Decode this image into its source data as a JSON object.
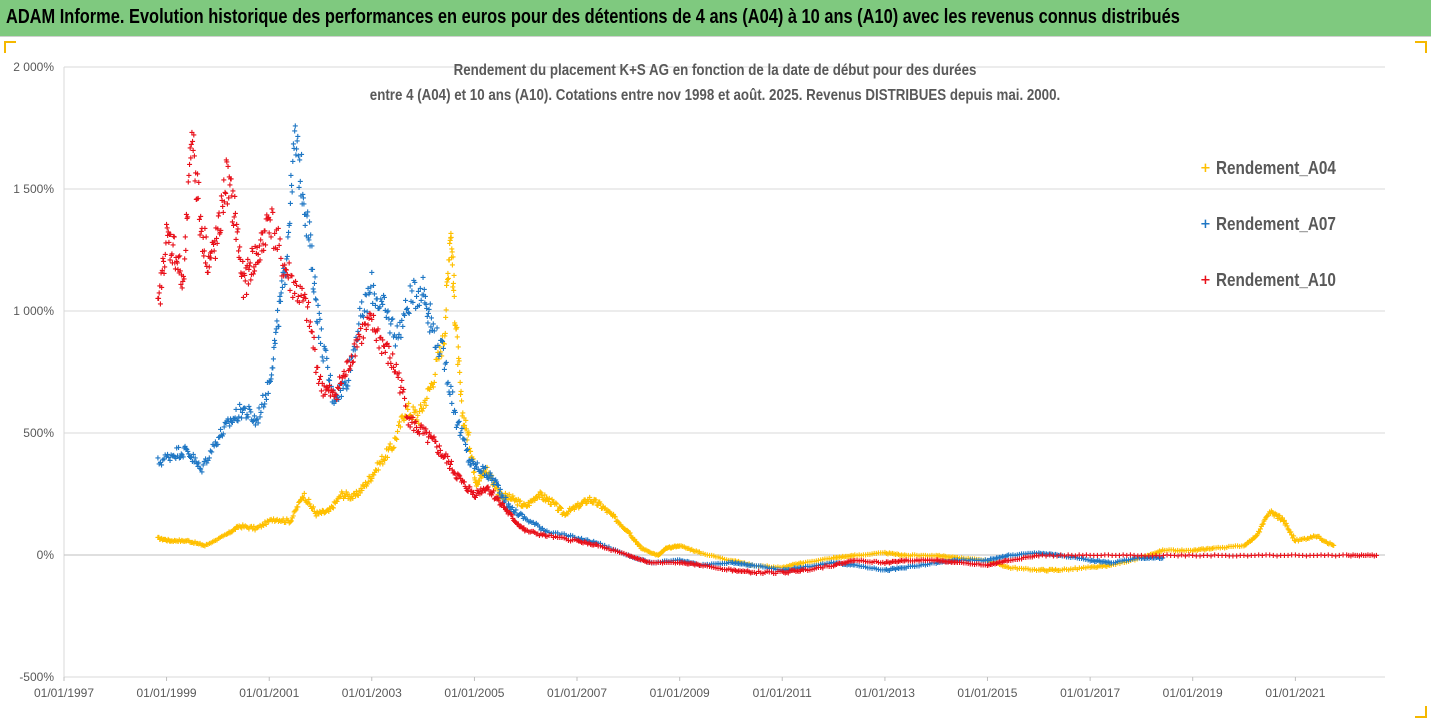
{
  "banner": {
    "title": "ADAM Informe. Evolution historique des performances en euros pour des détentions de 4 ans (A04) à 10 ans (A10) avec les revenus connus distribués"
  },
  "chart_data": {
    "type": "scatter",
    "title_lines": [
      "Rendement du placement K+S AG en fonction de la date de début pour des durées",
      "entre 4 (A04) et 10 ans (A10). Cotations entre nov 1998 et août. 2025. Revenus DISTRIBUES depuis mai. 2000."
    ],
    "xlabel": "",
    "ylabel": "",
    "y_unit": "%",
    "ylim": [
      -500,
      2000
    ],
    "yticks": [
      -500,
      0,
      500,
      1000,
      1500,
      2000
    ],
    "ytick_labels": [
      "-500%",
      "0%",
      "500%",
      "1 000%",
      "1 500%",
      "2 000%"
    ],
    "xlim": [
      "1997-01-01",
      "2022-10-01"
    ],
    "xticks": [
      "1997-01-01",
      "1999-01-01",
      "2001-01-01",
      "2003-01-01",
      "2005-01-01",
      "2007-01-01",
      "2009-01-01",
      "2011-01-01",
      "2013-01-01",
      "2015-01-01",
      "2017-01-01",
      "2019-01-01",
      "2021-01-01"
    ],
    "xtick_labels": [
      "01/01/1997",
      "01/01/1999",
      "01/01/2001",
      "01/01/2003",
      "01/01/2005",
      "01/01/2007",
      "01/01/2009",
      "01/01/2011",
      "01/01/2013",
      "01/01/2015",
      "01/01/2017",
      "01/01/2019",
      "01/01/2021"
    ],
    "grid": true,
    "legend_position": "right",
    "marker": "+",
    "series": [
      {
        "name": "Rendement_A04",
        "color": "#ffc000",
        "points": [
          [
            "1998-11-01",
            70
          ],
          [
            "1999-02-01",
            60
          ],
          [
            "1999-06-01",
            60
          ],
          [
            "1999-10-01",
            40
          ],
          [
            "2000-03-01",
            85
          ],
          [
            "2000-06-01",
            120
          ],
          [
            "2000-10-01",
            110
          ],
          [
            "2001-02-01",
            150
          ],
          [
            "2001-06-01",
            140
          ],
          [
            "2001-09-01",
            250
          ],
          [
            "2001-12-01",
            170
          ],
          [
            "2002-03-01",
            180
          ],
          [
            "2002-06-01",
            250
          ],
          [
            "2002-09-01",
            240
          ],
          [
            "2002-12-01",
            300
          ],
          [
            "2003-03-01",
            380
          ],
          [
            "2003-06-01",
            450
          ],
          [
            "2003-09-01",
            600
          ],
          [
            "2003-12-01",
            570
          ],
          [
            "2004-03-01",
            700
          ],
          [
            "2004-06-01",
            900
          ],
          [
            "2004-07-15",
            1350
          ],
          [
            "2004-08-15",
            1000
          ],
          [
            "2004-10-01",
            600
          ],
          [
            "2004-12-01",
            450
          ],
          [
            "2005-01-15",
            300
          ],
          [
            "2005-04-01",
            350
          ],
          [
            "2005-07-01",
            250
          ],
          [
            "2005-10-01",
            230
          ],
          [
            "2006-01-01",
            200
          ],
          [
            "2006-04-01",
            250
          ],
          [
            "2006-07-01",
            220
          ],
          [
            "2006-10-01",
            170
          ],
          [
            "2007-01-01",
            200
          ],
          [
            "2007-04-01",
            230
          ],
          [
            "2007-07-01",
            200
          ],
          [
            "2007-10-01",
            150
          ],
          [
            "2008-01-01",
            100
          ],
          [
            "2008-04-01",
            30
          ],
          [
            "2008-08-01",
            0
          ],
          [
            "2008-10-01",
            30
          ],
          [
            "2009-01-01",
            40
          ],
          [
            "2009-06-01",
            10
          ],
          [
            "2010-01-01",
            -20
          ],
          [
            "2010-06-01",
            -40
          ],
          [
            "2011-01-01",
            -50
          ],
          [
            "2011-06-01",
            -30
          ],
          [
            "2012-01-01",
            -10
          ],
          [
            "2012-06-01",
            0
          ],
          [
            "2013-01-01",
            10
          ],
          [
            "2013-06-01",
            0
          ],
          [
            "2014-01-01",
            0
          ],
          [
            "2014-06-01",
            -10
          ],
          [
            "2015-01-01",
            -20
          ],
          [
            "2015-06-01",
            -50
          ],
          [
            "2016-01-01",
            -60
          ],
          [
            "2016-06-01",
            -60
          ],
          [
            "2017-01-01",
            -50
          ],
          [
            "2017-06-01",
            -40
          ],
          [
            "2018-01-01",
            -10
          ],
          [
            "2018-06-01",
            20
          ],
          [
            "2019-01-01",
            20
          ],
          [
            "2019-06-01",
            30
          ],
          [
            "2020-01-01",
            40
          ],
          [
            "2020-04-01",
            80
          ],
          [
            "2020-07-01",
            180
          ],
          [
            "2020-10-01",
            150
          ],
          [
            "2021-01-01",
            60
          ],
          [
            "2021-06-01",
            80
          ],
          [
            "2021-10-01",
            40
          ]
        ]
      },
      {
        "name": "Rendement_A07",
        "color": "#1f77c4",
        "points": [
          [
            "1998-11-01",
            380
          ],
          [
            "1999-03-01",
            420
          ],
          [
            "1999-06-01",
            430
          ],
          [
            "1999-09-01",
            350
          ],
          [
            "2000-01-01",
            480
          ],
          [
            "2000-04-01",
            550
          ],
          [
            "2000-07-01",
            600
          ],
          [
            "2000-10-01",
            550
          ],
          [
            "2001-01-01",
            700
          ],
          [
            "2001-03-01",
            950
          ],
          [
            "2001-05-01",
            1200
          ],
          [
            "2001-07-01",
            1700
          ],
          [
            "2001-09-01",
            1500
          ],
          [
            "2001-11-01",
            1200
          ],
          [
            "2002-01-01",
            900
          ],
          [
            "2002-04-01",
            650
          ],
          [
            "2002-07-01",
            700
          ],
          [
            "2002-10-01",
            950
          ],
          [
            "2003-01-01",
            1100
          ],
          [
            "2003-04-01",
            1000
          ],
          [
            "2003-07-01",
            900
          ],
          [
            "2003-10-01",
            1050
          ],
          [
            "2004-01-01",
            1100
          ],
          [
            "2004-03-01",
            950
          ],
          [
            "2004-06-01",
            800
          ],
          [
            "2004-09-01",
            550
          ],
          [
            "2004-12-01",
            380
          ],
          [
            "2005-03-01",
            350
          ],
          [
            "2005-06-01",
            300
          ],
          [
            "2005-09-01",
            200
          ],
          [
            "2006-01-01",
            150
          ],
          [
            "2006-06-01",
            100
          ],
          [
            "2007-01-01",
            70
          ],
          [
            "2007-06-01",
            50
          ],
          [
            "2008-01-01",
            0
          ],
          [
            "2008-06-01",
            -30
          ],
          [
            "2009-01-01",
            -20
          ],
          [
            "2009-06-01",
            -40
          ],
          [
            "2010-01-01",
            -30
          ],
          [
            "2010-06-01",
            -40
          ],
          [
            "2011-01-01",
            -60
          ],
          [
            "2011-06-01",
            -50
          ],
          [
            "2012-01-01",
            -30
          ],
          [
            "2012-06-01",
            -40
          ],
          [
            "2013-01-01",
            -60
          ],
          [
            "2013-06-01",
            -50
          ],
          [
            "2014-01-01",
            -30
          ],
          [
            "2014-06-01",
            -20
          ],
          [
            "2015-01-01",
            -20
          ],
          [
            "2015-06-01",
            0
          ],
          [
            "2016-01-01",
            10
          ],
          [
            "2016-06-01",
            0
          ],
          [
            "2017-01-01",
            -20
          ],
          [
            "2017-06-01",
            -30
          ],
          [
            "2018-01-01",
            -10
          ],
          [
            "2018-06-01",
            -10
          ]
        ]
      },
      {
        "name": "Rendement_A10",
        "color": "#e8101a",
        "points": [
          [
            "1998-11-01",
            1000
          ],
          [
            "1999-01-01",
            1300
          ],
          [
            "1999-03-01",
            1250
          ],
          [
            "1999-05-01",
            1100
          ],
          [
            "1999-07-01",
            1750
          ],
          [
            "1999-09-01",
            1350
          ],
          [
            "1999-11-01",
            1200
          ],
          [
            "2000-01-01",
            1300
          ],
          [
            "2000-03-01",
            1550
          ],
          [
            "2000-05-01",
            1400
          ],
          [
            "2000-07-01",
            1100
          ],
          [
            "2000-09-01",
            1200
          ],
          [
            "2000-11-01",
            1250
          ],
          [
            "2001-01-01",
            1400
          ],
          [
            "2001-04-01",
            1200
          ],
          [
            "2001-07-01",
            1100
          ],
          [
            "2001-10-01",
            1000
          ],
          [
            "2002-01-01",
            700
          ],
          [
            "2002-04-01",
            650
          ],
          [
            "2002-07-01",
            750
          ],
          [
            "2002-10-01",
            900
          ],
          [
            "2003-01-01",
            950
          ],
          [
            "2003-04-01",
            850
          ],
          [
            "2003-07-01",
            750
          ],
          [
            "2003-10-01",
            550
          ],
          [
            "2004-01-01",
            500
          ],
          [
            "2004-04-01",
            450
          ],
          [
            "2004-07-01",
            380
          ],
          [
            "2004-10-01",
            300
          ],
          [
            "2005-01-01",
            250
          ],
          [
            "2005-04-01",
            280
          ],
          [
            "2005-07-01",
            220
          ],
          [
            "2005-10-01",
            150
          ],
          [
            "2006-01-01",
            100
          ],
          [
            "2006-06-01",
            80
          ],
          [
            "2007-01-01",
            60
          ],
          [
            "2007-06-01",
            40
          ],
          [
            "2008-01-01",
            0
          ],
          [
            "2008-06-01",
            -30
          ],
          [
            "2009-01-01",
            -30
          ],
          [
            "2009-06-01",
            -40
          ],
          [
            "2010-01-01",
            -60
          ],
          [
            "2010-06-01",
            -70
          ],
          [
            "2011-01-01",
            -70
          ],
          [
            "2011-06-01",
            -60
          ],
          [
            "2012-01-01",
            -40
          ],
          [
            "2012-06-01",
            -20
          ],
          [
            "2013-01-01",
            -30
          ],
          [
            "2013-06-01",
            -20
          ],
          [
            "2014-01-01",
            -20
          ],
          [
            "2014-06-01",
            -30
          ],
          [
            "2015-01-01",
            -40
          ],
          [
            "2015-06-01",
            -20
          ],
          [
            "2016-01-01",
            0
          ],
          [
            "2017-01-01",
            0
          ],
          [
            "2018-01-01",
            0
          ],
          [
            "2019-01-01",
            0
          ],
          [
            "2020-01-01",
            0
          ],
          [
            "2021-01-01",
            0
          ],
          [
            "2022-01-01",
            0
          ],
          [
            "2022-08-01",
            0
          ]
        ]
      }
    ]
  }
}
